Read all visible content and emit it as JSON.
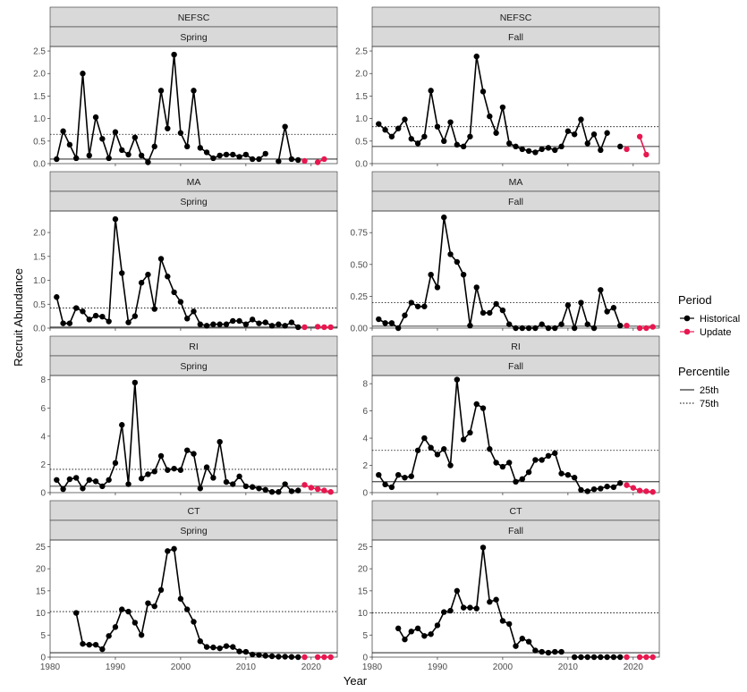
{
  "figure": {
    "ylabel": "Recruit Abundance",
    "xlabel": "Year",
    "legend": {
      "period_title": "Period",
      "period_entries": [
        {
          "label": "Historical",
          "color": "#000000"
        },
        {
          "label": "Update",
          "color": "#e8174f"
        }
      ],
      "percentile_title": "Percentile",
      "percentile_entries": [
        {
          "label": "25th",
          "style": "solid"
        },
        {
          "label": "75th",
          "style": "dotted"
        }
      ]
    },
    "colors": {
      "historical": "#000000",
      "update": "#e8174f",
      "strip": "#d9d9d9"
    }
  },
  "chart_data": [
    {
      "type": "line",
      "survey": "NEFSC",
      "season": "Spring",
      "xlim": [
        1980,
        2024
      ],
      "ylim": [
        0,
        2.6
      ],
      "yticks": [
        0,
        0.5,
        1.0,
        1.5,
        2.0,
        2.5
      ],
      "ytick_labels": [
        "0.0",
        "0.5",
        "1.0",
        "1.5",
        "2.0",
        "2.5"
      ],
      "xticks": [
        1980,
        1990,
        2000,
        2010,
        2020
      ],
      "xtick_labels": [],
      "p25": 0.1,
      "p75": 0.65,
      "historical": {
        "x": [
          1981,
          1982,
          1983,
          1984,
          1985,
          1986,
          1987,
          1988,
          1989,
          1990,
          1991,
          1992,
          1993,
          1994,
          1995,
          1996,
          1997,
          1998,
          1999,
          2000,
          2001,
          2002,
          2003,
          2004,
          2005,
          2006,
          2007,
          2008,
          2009,
          2010,
          2011,
          2012,
          2013,
          2014,
          2015,
          2016,
          2017,
          2018
        ],
        "y": [
          0.1,
          0.72,
          0.42,
          0.12,
          2.0,
          0.18,
          1.03,
          0.55,
          0.12,
          0.7,
          0.3,
          0.2,
          0.58,
          0.18,
          0.03,
          0.38,
          1.62,
          0.78,
          2.42,
          0.68,
          0.38,
          1.62,
          0.35,
          0.25,
          0.12,
          0.18,
          0.2,
          0.2,
          0.15,
          0.2,
          0.1,
          0.1,
          0.22,
          null,
          0.05,
          0.82,
          0.1,
          0.08
        ]
      },
      "update": {
        "x": [
          2019,
          2020,
          2021,
          2022,
          2023
        ],
        "y": [
          0.06,
          null,
          0.03,
          0.1,
          null
        ]
      }
    },
    {
      "type": "line",
      "survey": "NEFSC",
      "season": "Fall",
      "xlim": [
        1980,
        2024
      ],
      "ylim": [
        0,
        2.6
      ],
      "yticks": [
        0,
        0.5,
        1.0,
        1.5,
        2.0,
        2.5
      ],
      "ytick_labels": [
        "0.0",
        "0.5",
        "1.0",
        "1.5",
        "2.0",
        "2.5"
      ],
      "xticks": [
        1980,
        1990,
        2000,
        2010,
        2020
      ],
      "xtick_labels": [],
      "p25": 0.38,
      "p75": 0.82,
      "historical": {
        "x": [
          1981,
          1982,
          1983,
          1984,
          1985,
          1986,
          1987,
          1988,
          1989,
          1990,
          1991,
          1992,
          1993,
          1994,
          1995,
          1996,
          1997,
          1998,
          1999,
          2000,
          2001,
          2002,
          2003,
          2004,
          2005,
          2006,
          2007,
          2008,
          2009,
          2010,
          2011,
          2012,
          2013,
          2014,
          2015,
          2016,
          2017,
          2018
        ],
        "y": [
          0.88,
          0.75,
          0.6,
          0.78,
          0.98,
          0.55,
          0.45,
          0.6,
          1.62,
          0.82,
          0.5,
          0.92,
          0.42,
          0.38,
          0.6,
          2.38,
          1.6,
          1.05,
          0.68,
          1.25,
          0.45,
          0.38,
          0.32,
          0.28,
          0.25,
          0.32,
          0.35,
          0.3,
          0.38,
          0.72,
          0.65,
          0.98,
          0.45,
          0.65,
          0.3,
          0.68,
          null,
          0.38
        ]
      },
      "update": {
        "x": [
          2019,
          2020,
          2021,
          2022,
          2023
        ],
        "y": [
          0.32,
          null,
          0.6,
          0.2,
          null
        ]
      }
    },
    {
      "type": "line",
      "survey": "MA",
      "season": "Spring",
      "xlim": [
        1980,
        2024
      ],
      "ylim": [
        0,
        2.45
      ],
      "yticks": [
        0,
        0.5,
        1.0,
        1.5,
        2.0
      ],
      "ytick_labels": [
        "0.0",
        "0.5",
        "1.0",
        "1.5",
        "2.0"
      ],
      "xticks": [
        1980,
        1990,
        2000,
        2010,
        2020
      ],
      "xtick_labels": [],
      "p25": 0.02,
      "p75": 0.42,
      "historical": {
        "x": [
          1981,
          1982,
          1983,
          1984,
          1985,
          1986,
          1987,
          1988,
          1989,
          1990,
          1991,
          1992,
          1993,
          1994,
          1995,
          1996,
          1997,
          1998,
          1999,
          2000,
          2001,
          2002,
          2003,
          2004,
          2005,
          2006,
          2007,
          2008,
          2009,
          2010,
          2011,
          2012,
          2013,
          2014,
          2015,
          2016,
          2017,
          2018
        ],
        "y": [
          0.65,
          0.1,
          0.1,
          0.42,
          0.35,
          0.18,
          0.26,
          0.24,
          0.14,
          2.28,
          1.15,
          0.12,
          0.25,
          0.95,
          1.12,
          0.4,
          1.45,
          1.08,
          0.75,
          0.55,
          0.2,
          0.35,
          0.08,
          0.05,
          0.08,
          0.08,
          0.08,
          0.15,
          0.15,
          0.08,
          0.18,
          0.1,
          0.12,
          0.05,
          0.08,
          0.05,
          0.12,
          0.02
        ]
      },
      "update": {
        "x": [
          2019,
          2020,
          2021,
          2022,
          2023
        ],
        "y": [
          0.02,
          null,
          0.03,
          0.02,
          0.02
        ]
      }
    },
    {
      "type": "line",
      "survey": "MA",
      "season": "Fall",
      "xlim": [
        1980,
        2024
      ],
      "ylim": [
        0,
        0.92
      ],
      "yticks": [
        0,
        0.25,
        0.5,
        0.75
      ],
      "ytick_labels": [
        "0.00",
        "0.25",
        "0.50",
        "0.75"
      ],
      "xticks": [
        1980,
        1990,
        2000,
        2010,
        2020
      ],
      "xtick_labels": [],
      "p25": 0.015,
      "p75": 0.2,
      "historical": {
        "x": [
          1981,
          1982,
          1983,
          1984,
          1985,
          1986,
          1987,
          1988,
          1989,
          1990,
          1991,
          1992,
          1993,
          1994,
          1995,
          1996,
          1997,
          1998,
          1999,
          2000,
          2001,
          2002,
          2003,
          2004,
          2005,
          2006,
          2007,
          2008,
          2009,
          2010,
          2011,
          2012,
          2013,
          2014,
          2015,
          2016,
          2017,
          2018
        ],
        "y": [
          0.07,
          0.04,
          0.04,
          0.0,
          0.1,
          0.2,
          0.17,
          0.17,
          0.42,
          0.32,
          0.87,
          0.58,
          0.52,
          0.42,
          0.02,
          0.32,
          0.12,
          0.12,
          0.19,
          0.14,
          0.03,
          0.0,
          0.0,
          0.0,
          0.0,
          0.03,
          0.0,
          0.0,
          0.03,
          0.18,
          0.0,
          0.2,
          0.03,
          0.0,
          0.3,
          0.13,
          0.16,
          0.02
        ]
      },
      "update": {
        "x": [
          2019,
          2020,
          2021,
          2022,
          2023
        ],
        "y": [
          0.02,
          null,
          0.0,
          0.0,
          0.01
        ]
      }
    },
    {
      "type": "line",
      "survey": "RI",
      "season": "Spring",
      "xlim": [
        1980,
        2024
      ],
      "ylim": [
        0,
        8.3
      ],
      "yticks": [
        0,
        2,
        4,
        6,
        8
      ],
      "ytick_labels": [
        "0",
        "2",
        "4",
        "6",
        "8"
      ],
      "xticks": [
        1980,
        1990,
        2000,
        2010,
        2020
      ],
      "xtick_labels": [],
      "p25": 0.45,
      "p75": 1.65,
      "historical": {
        "x": [
          1981,
          1982,
          1983,
          1984,
          1985,
          1986,
          1987,
          1988,
          1989,
          1990,
          1991,
          1992,
          1993,
          1994,
          1995,
          1996,
          1997,
          1998,
          1999,
          2000,
          2001,
          2002,
          2003,
          2004,
          2005,
          2006,
          2007,
          2008,
          2009,
          2010,
          2011,
          2012,
          2013,
          2014,
          2015,
          2016,
          2017,
          2018
        ],
        "y": [
          0.9,
          0.25,
          0.95,
          1.05,
          0.3,
          0.9,
          0.8,
          0.45,
          0.9,
          2.1,
          4.8,
          0.6,
          7.8,
          1.0,
          1.3,
          1.5,
          2.6,
          1.6,
          1.7,
          1.6,
          3.0,
          2.75,
          0.3,
          1.8,
          1.05,
          3.6,
          0.75,
          0.6,
          1.15,
          0.45,
          0.4,
          0.3,
          0.2,
          0.05,
          0.05,
          0.6,
          0.1,
          0.15
        ]
      },
      "update": {
        "x": [
          2019,
          2020,
          2021,
          2022,
          2023
        ],
        "y": [
          0.55,
          0.35,
          0.25,
          0.15,
          0.05
        ]
      }
    },
    {
      "type": "line",
      "survey": "RI",
      "season": "Fall",
      "xlim": [
        1980,
        2024
      ],
      "ylim": [
        0,
        8.6
      ],
      "yticks": [
        0,
        2,
        4,
        6,
        8
      ],
      "ytick_labels": [
        "0",
        "2",
        "4",
        "6",
        "8"
      ],
      "xticks": [
        1980,
        1990,
        2000,
        2010,
        2020
      ],
      "xtick_labels": [],
      "p25": 0.8,
      "p75": 3.1,
      "historical": {
        "x": [
          1981,
          1982,
          1983,
          1984,
          1985,
          1986,
          1987,
          1988,
          1989,
          1990,
          1991,
          1992,
          1993,
          1994,
          1995,
          1996,
          1997,
          1998,
          1999,
          2000,
          2001,
          2002,
          2003,
          2004,
          2005,
          2006,
          2007,
          2008,
          2009,
          2010,
          2011,
          2012,
          2013,
          2014,
          2015,
          2016,
          2017,
          2018
        ],
        "y": [
          1.3,
          0.6,
          0.4,
          1.3,
          1.1,
          1.2,
          3.1,
          4.0,
          3.3,
          2.8,
          3.2,
          2.0,
          8.3,
          3.9,
          4.4,
          6.5,
          6.2,
          3.2,
          2.2,
          1.9,
          2.2,
          0.8,
          1.0,
          1.5,
          2.4,
          2.4,
          2.7,
          2.9,
          1.4,
          1.3,
          1.1,
          0.2,
          0.1,
          0.25,
          0.3,
          0.45,
          0.4,
          0.7
        ]
      },
      "update": {
        "x": [
          2019,
          2020,
          2021,
          2022,
          2023
        ],
        "y": [
          0.55,
          0.35,
          0.15,
          0.1,
          0.05
        ]
      }
    },
    {
      "type": "line",
      "survey": "CT",
      "season": "Spring",
      "xlim": [
        1980,
        2024
      ],
      "ylim": [
        0,
        26.5
      ],
      "yticks": [
        0,
        5,
        10,
        15,
        20,
        25
      ],
      "ytick_labels": [
        "0",
        "5",
        "10",
        "15",
        "20",
        "25"
      ],
      "xticks": [
        1980,
        1990,
        2000,
        2010,
        2020
      ],
      "xtick_labels": [
        "1980",
        "1990",
        "2000",
        "2010",
        "2020"
      ],
      "p25": 1.0,
      "p75": 10.3,
      "historical": {
        "x": [
          1981,
          1982,
          1983,
          1984,
          1985,
          1986,
          1987,
          1988,
          1989,
          1990,
          1991,
          1992,
          1993,
          1994,
          1995,
          1996,
          1997,
          1998,
          1999,
          2000,
          2001,
          2002,
          2003,
          2004,
          2005,
          2006,
          2007,
          2008,
          2009,
          2010,
          2011,
          2012,
          2013,
          2014,
          2015,
          2016,
          2017,
          2018
        ],
        "y": [
          null,
          null,
          null,
          10.0,
          3.0,
          2.8,
          2.8,
          1.8,
          4.8,
          6.8,
          10.8,
          10.3,
          7.8,
          5.0,
          12.2,
          11.5,
          15.2,
          24.0,
          24.5,
          13.2,
          10.8,
          8.0,
          3.6,
          2.3,
          2.2,
          2.0,
          2.5,
          2.3,
          1.3,
          1.2,
          0.6,
          0.5,
          0.3,
          0.2,
          0.1,
          0.1,
          0.05,
          0.0
        ]
      },
      "update": {
        "x": [
          2019,
          2020,
          2021,
          2022,
          2023
        ],
        "y": [
          0.0,
          null,
          0.0,
          0.0,
          0.0
        ]
      }
    },
    {
      "type": "line",
      "survey": "CT",
      "season": "Fall",
      "xlim": [
        1980,
        2024
      ],
      "ylim": [
        0,
        26.5
      ],
      "yticks": [
        0,
        5,
        10,
        15,
        20,
        25
      ],
      "ytick_labels": [
        "0",
        "5",
        "10",
        "15",
        "20",
        "25"
      ],
      "xticks": [
        1980,
        1990,
        2000,
        2010,
        2020
      ],
      "xtick_labels": [
        "1980",
        "1990",
        "2000",
        "2010",
        "2020"
      ],
      "p25": 1.0,
      "p75": 10.0,
      "historical": {
        "x": [
          1981,
          1982,
          1983,
          1984,
          1985,
          1986,
          1987,
          1988,
          1989,
          1990,
          1991,
          1992,
          1993,
          1994,
          1995,
          1996,
          1997,
          1998,
          1999,
          2000,
          2001,
          2002,
          2003,
          2004,
          2005,
          2006,
          2007,
          2008,
          2009,
          2010,
          2011,
          2012,
          2013,
          2014,
          2015,
          2016,
          2017,
          2018
        ],
        "y": [
          null,
          null,
          null,
          6.5,
          4.0,
          5.8,
          6.5,
          4.8,
          5.2,
          7.2,
          10.2,
          10.5,
          15.0,
          11.2,
          11.2,
          11.0,
          24.8,
          12.5,
          13.0,
          8.2,
          7.5,
          2.5,
          4.2,
          3.5,
          1.5,
          1.2,
          1.0,
          1.2,
          1.2,
          null,
          0.0,
          0.0,
          0.0,
          0.0,
          0.0,
          0.0,
          0.0,
          0.0
        ]
      },
      "update": {
        "x": [
          2019,
          2020,
          2021,
          2022,
          2023
        ],
        "y": [
          0.0,
          null,
          0.0,
          0.0,
          0.0
        ]
      }
    }
  ]
}
